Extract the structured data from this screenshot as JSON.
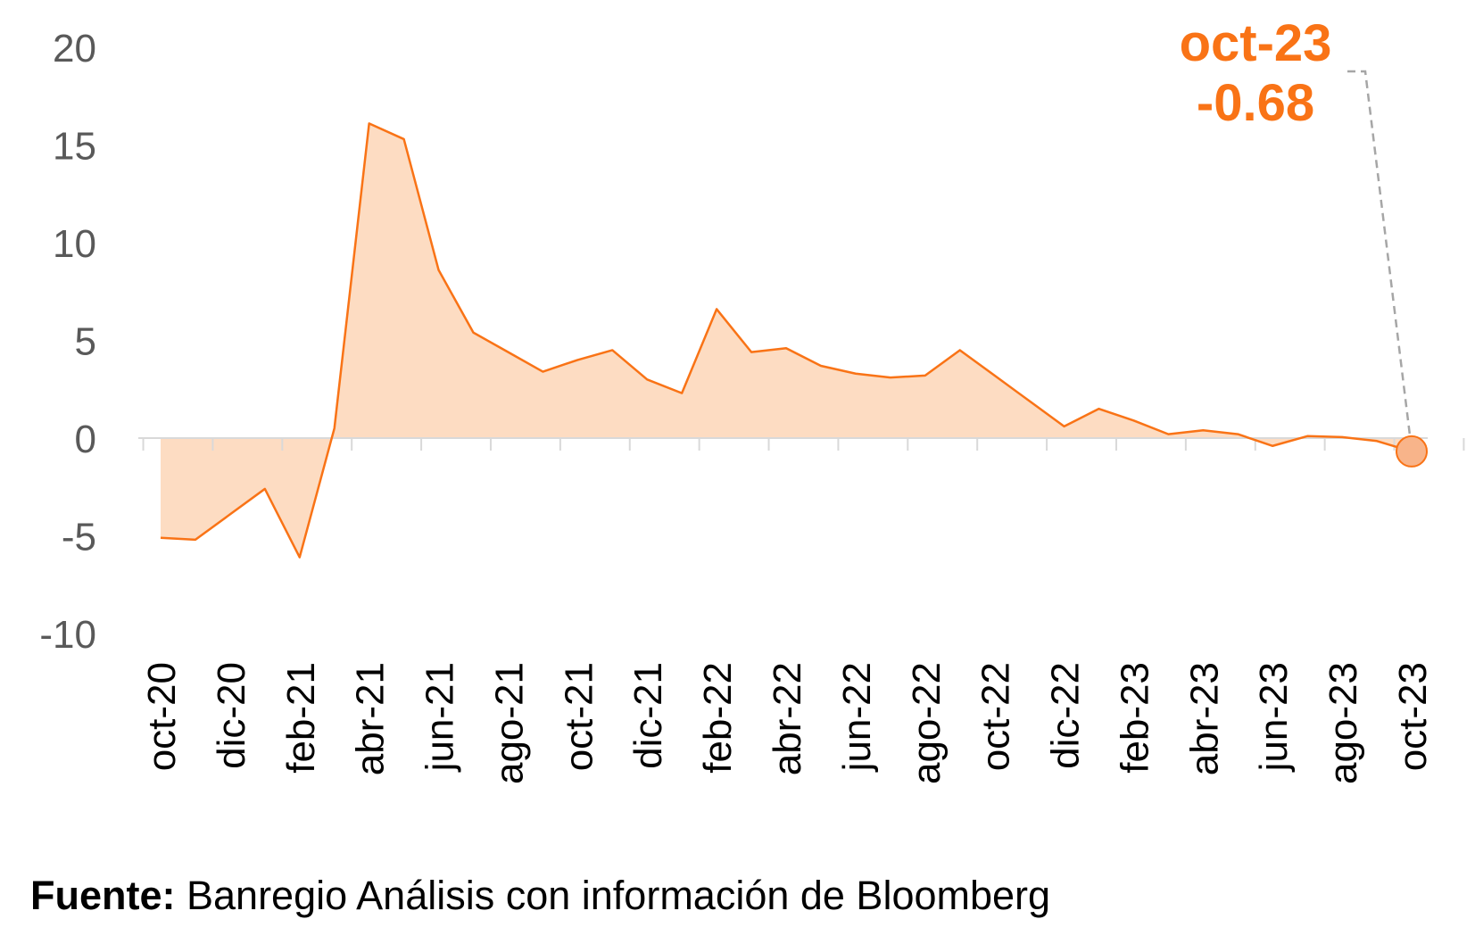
{
  "chart_data": {
    "type": "area",
    "x": [
      "oct-20",
      "nov-20",
      "dic-20",
      "ene-21",
      "feb-21",
      "mar-21",
      "abr-21",
      "may-21",
      "jun-21",
      "jul-21",
      "ago-21",
      "sep-21",
      "oct-21",
      "nov-21",
      "dic-21",
      "ene-22",
      "feb-22",
      "mar-22",
      "abr-22",
      "may-22",
      "jun-22",
      "jul-22",
      "ago-22",
      "sep-22",
      "oct-22",
      "nov-22",
      "dic-22",
      "ene-23",
      "feb-23",
      "mar-23",
      "abr-23",
      "may-23",
      "jun-23",
      "jul-23",
      "ago-23",
      "sep-23",
      "oct-23"
    ],
    "tick_labels": [
      "oct-20",
      "dic-20",
      "feb-21",
      "abr-21",
      "jun-21",
      "ago-21",
      "oct-21",
      "dic-21",
      "feb-22",
      "abr-22",
      "jun-22",
      "ago-22",
      "oct-22",
      "dic-22",
      "feb-23",
      "abr-23",
      "jun-23",
      "ago-23",
      "oct-23"
    ],
    "values": [
      -5.1,
      -5.2,
      -3.9,
      -2.6,
      -6.1,
      0.5,
      16.1,
      15.3,
      8.6,
      5.4,
      4.4,
      3.4,
      4.0,
      4.5,
      3.0,
      2.3,
      6.6,
      4.4,
      4.6,
      3.7,
      3.3,
      3.1,
      3.2,
      4.5,
      3.2,
      1.9,
      0.6,
      1.5,
      0.9,
      0.2,
      0.4,
      0.2,
      -0.4,
      0.1,
      0.05,
      -0.15,
      -0.68
    ],
    "ylim": [
      -10,
      20
    ],
    "yticks": [
      -10,
      -5,
      0,
      5,
      10,
      15,
      20
    ],
    "ytick_labels": [
      "-10",
      "-5",
      "0",
      "5",
      "10",
      "15",
      "20"
    ],
    "xlabel": "",
    "ylabel": "",
    "grid": false,
    "colors": {
      "line": "#F97316",
      "fill": "#FDDCC2",
      "axis": "#D9D9D9",
      "marker_fill": "#F8B48A",
      "callout_text": "#F97316",
      "leader": "#A6A6A6"
    },
    "annotation": {
      "label": "oct-23",
      "value_label": "-0.68",
      "x": "oct-23",
      "y": -0.68
    }
  },
  "source": {
    "bold": "Fuente:",
    "text": " Banregio Análisis con información de Bloomberg"
  }
}
